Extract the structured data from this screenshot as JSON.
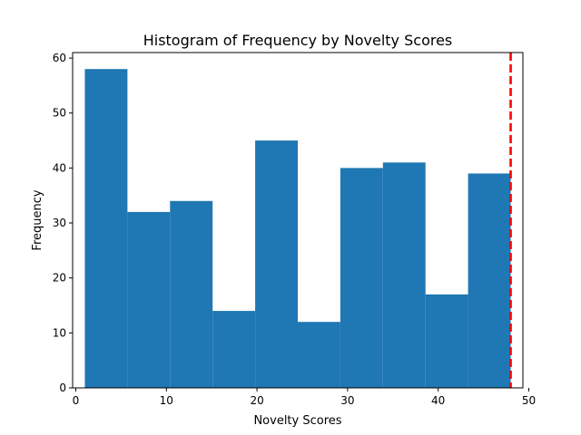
{
  "chart_data": {
    "type": "bar",
    "title": "Histogram of Frequency by Novelty Scores",
    "xlabel": "Novelty Scores",
    "ylabel": "Frequency",
    "bin_edges": [
      1,
      5.7,
      10.4,
      15.1,
      19.8,
      24.5,
      29.2,
      33.9,
      38.6,
      43.3,
      48
    ],
    "values": [
      58,
      32,
      34,
      14,
      45,
      12,
      40,
      41,
      17,
      39
    ],
    "xlim": [
      -0.35,
      49.35
    ],
    "ylim": [
      0,
      61
    ],
    "xticks": [
      "0",
      "10",
      "20",
      "30",
      "40",
      "50"
    ],
    "yticks": [
      "0",
      "10",
      "20",
      "30",
      "40",
      "50",
      "60"
    ],
    "reference_line": {
      "x": 48,
      "color": "#ff0000",
      "style": "dashed"
    },
    "bar_color": "#1f77b4",
    "grid": false,
    "legend": "none"
  }
}
